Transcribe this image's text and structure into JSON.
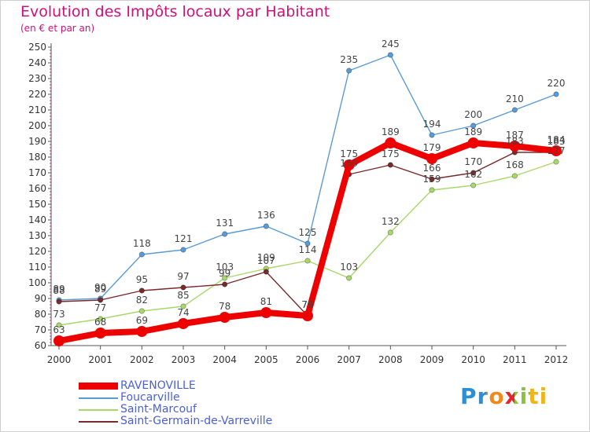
{
  "chart_data": {
    "type": "line",
    "title": "Evolution des Impôts locaux par Habitant",
    "subtitle": "(en € et par an)",
    "xlabel": "",
    "ylabel": "",
    "ylim": [
      60,
      250
    ],
    "y_ticks": [
      60,
      70,
      80,
      90,
      100,
      110,
      120,
      130,
      140,
      150,
      160,
      170,
      180,
      190,
      200,
      210,
      220,
      230,
      240,
      250
    ],
    "x": [
      "2000",
      "2001",
      "2002",
      "2003",
      "2004",
      "2005",
      "2006",
      "2007",
      "2008",
      "2009",
      "2010",
      "2011",
      "2012"
    ],
    "grid": false,
    "legend_position": "bottom-left",
    "series": [
      {
        "name": "Foucarville",
        "color": "#5a9bd5",
        "values": [
          89,
          90,
          118,
          121,
          131,
          136,
          125,
          235,
          245,
          194,
          200,
          210,
          220
        ],
        "labels": [
          "89",
          "90",
          "118",
          "121",
          "131",
          "136",
          "125",
          "235",
          "245",
          "194",
          "200",
          "210",
          "220"
        ]
      },
      {
        "name": "Saint-Marcouf",
        "color": "#a8d86a",
        "values": [
          73,
          77,
          82,
          85,
          103,
          109,
          114,
          103,
          132,
          159,
          162,
          168,
          177
        ],
        "labels": [
          "73",
          "77",
          "82",
          "85",
          "103",
          "109",
          "114",
          "103",
          "132",
          "159",
          "162",
          "168",
          "177"
        ]
      },
      {
        "name": "Saint-Germain-de-Varreville",
        "color": "#7a2a2a",
        "values": [
          88,
          89,
          95,
          97,
          99,
          107,
          79,
          169,
          175,
          166,
          170,
          183,
          183
        ],
        "labels": [
          "88",
          "89",
          "95",
          "97",
          "99",
          "107",
          "79",
          "169",
          "175",
          "166",
          "170",
          "183",
          "183"
        ]
      },
      {
        "name": "RAVENOVILLE",
        "color": "#ee0000",
        "values": [
          63,
          68,
          69,
          74,
          78,
          81,
          79,
          175,
          189,
          179,
          189,
          187,
          184
        ],
        "labels": [
          "63",
          "68",
          "69",
          "74",
          "78",
          "81",
          "79",
          "175",
          "189",
          "179",
          "189",
          "187",
          "184"
        ]
      }
    ]
  },
  "legend": {
    "items": [
      {
        "label": "RAVENOVILLE",
        "color": "#ee0000"
      },
      {
        "label": "Foucarville",
        "color": "#5a9bd5"
      },
      {
        "label": "Saint-Marcouf",
        "color": "#a8d86a"
      },
      {
        "label": "Saint-Germain-de-Varreville",
        "color": "#7a2a2a"
      }
    ]
  },
  "logo": {
    "text": "Proxiti"
  }
}
